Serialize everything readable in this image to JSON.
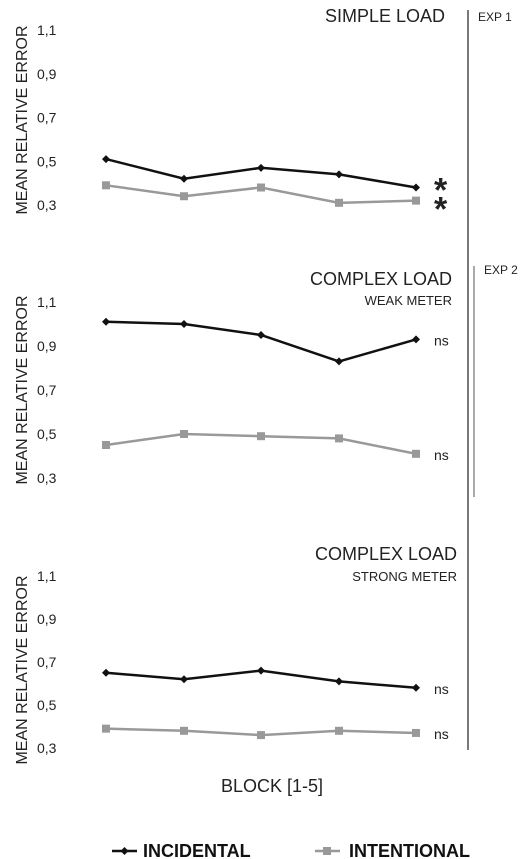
{
  "figure": {
    "ylabel": "MEAN RELATIVE ERROR",
    "xlabel": "BLOCK [1-5]",
    "legend": {
      "incidental": "INCIDENTAL",
      "intentional": "INTENTIONAL"
    },
    "exp1_label": "EXP 1",
    "exp2_label": "EXP 2",
    "colors": {
      "incidental": "#111111",
      "intentional": "#999999"
    }
  },
  "chart_data": [
    {
      "type": "line",
      "title": "SIMPLE LOAD",
      "subtitle": "",
      "ylabel": "MEAN RELATIVE ERROR",
      "ylim": [
        0.3,
        1.1
      ],
      "yticks": [
        "1,1",
        "0,9",
        "0,7",
        "0,5",
        "0,3"
      ],
      "x": [
        1,
        2,
        3,
        4,
        5
      ],
      "series": [
        {
          "name": "INCIDENTAL",
          "values": [
            0.51,
            0.42,
            0.47,
            0.44,
            0.38
          ],
          "marker": "diamond",
          "annotation": "*"
        },
        {
          "name": "INTENTIONAL",
          "values": [
            0.39,
            0.34,
            0.38,
            0.31,
            0.32
          ],
          "marker": "square",
          "annotation": "*"
        }
      ]
    },
    {
      "type": "line",
      "title": "COMPLEX LOAD",
      "subtitle": "WEAK METER",
      "ylabel": "MEAN RELATIVE ERROR",
      "ylim": [
        0.3,
        1.1
      ],
      "yticks": [
        "1,1",
        "0,9",
        "0,7",
        "0,5",
        "0,3"
      ],
      "x": [
        1,
        2,
        3,
        4,
        5
      ],
      "series": [
        {
          "name": "INCIDENTAL",
          "values": [
            1.01,
            1.0,
            0.95,
            0.83,
            0.93
          ],
          "marker": "diamond",
          "annotation": "ns"
        },
        {
          "name": "INTENTIONAL",
          "values": [
            0.45,
            0.5,
            0.49,
            0.48,
            0.41
          ],
          "marker": "square",
          "annotation": "ns"
        }
      ]
    },
    {
      "type": "line",
      "title": "COMPLEX LOAD",
      "subtitle": "STRONG METER",
      "ylabel": "MEAN RELATIVE ERROR",
      "ylim": [
        0.3,
        1.1
      ],
      "yticks": [
        "1,1",
        "0,9",
        "0,7",
        "0,5",
        "0,3"
      ],
      "x": [
        1,
        2,
        3,
        4,
        5
      ],
      "series": [
        {
          "name": "INCIDENTAL",
          "values": [
            0.65,
            0.62,
            0.66,
            0.61,
            0.58
          ],
          "marker": "diamond",
          "annotation": "ns"
        },
        {
          "name": "INTENTIONAL",
          "values": [
            0.39,
            0.38,
            0.36,
            0.38,
            0.37
          ],
          "marker": "square",
          "annotation": "ns"
        }
      ]
    }
  ]
}
